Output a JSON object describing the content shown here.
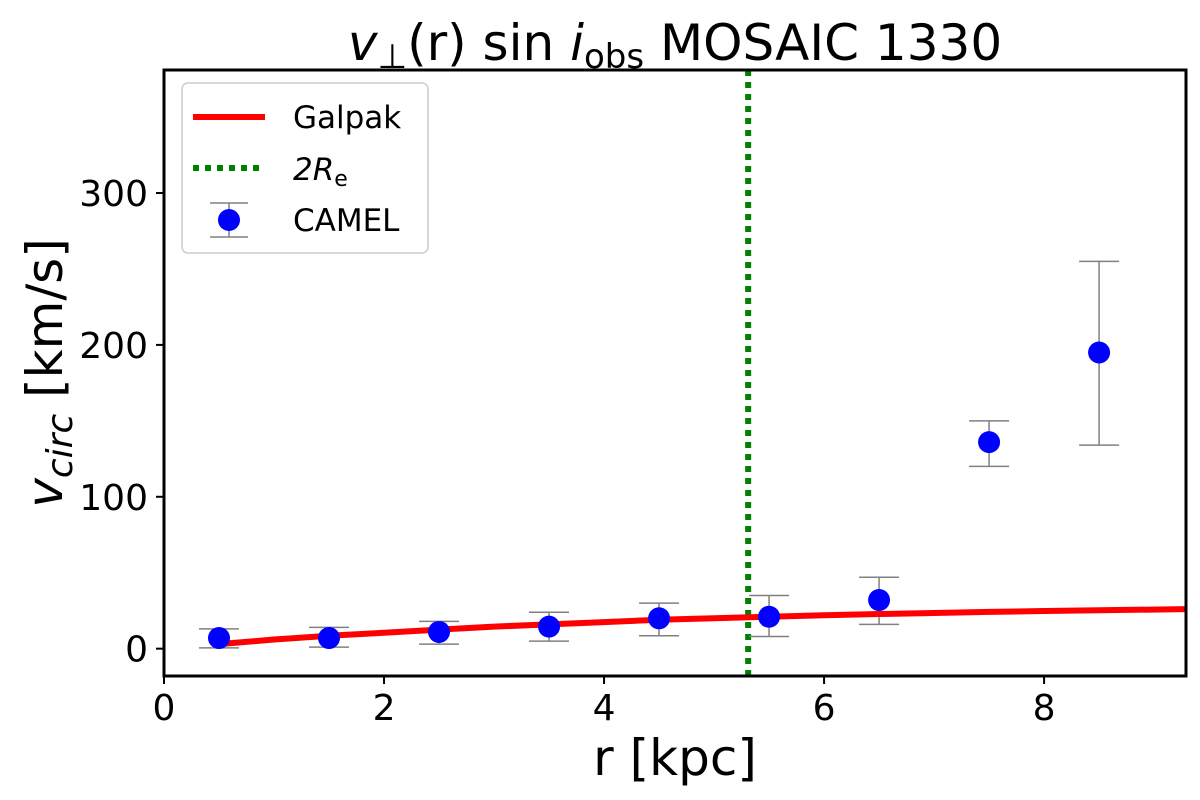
{
  "chart_data": {
    "type": "scatter",
    "title": {
      "main": "v",
      "sub1": "⊥",
      "mid": "(r) sin ",
      "i": "i",
      "sub2": "obs",
      "rest": " MOSAIC 1330"
    },
    "xlabel": "r [kpc]",
    "ylabel": {
      "main": "v",
      "sub": "circ",
      "rest": " [km/s]"
    },
    "xlim": [
      0,
      9.29
    ],
    "ylim": [
      -18,
      381
    ],
    "xticks": [
      0,
      2,
      4,
      6,
      8
    ],
    "yticks": [
      0,
      100,
      200,
      300
    ],
    "grid": false,
    "legend_position": "top-left",
    "legend": [
      {
        "label": "Galpak",
        "style": "line"
      },
      {
        "label_main": "2R",
        "label_sub": "e",
        "style": "dotted"
      },
      {
        "label": "CAMEL",
        "style": "marker-errorbar"
      }
    ],
    "series": [
      {
        "name": "Galpak",
        "type": "line",
        "color": "#ff0000",
        "x": [
          0.5,
          1.0,
          1.5,
          2.0,
          2.5,
          3.0,
          3.5,
          4.0,
          4.5,
          5.0,
          5.5,
          6.0,
          6.5,
          7.0,
          7.5,
          8.0,
          8.5,
          9.29
        ],
        "y": [
          3,
          6,
          8.5,
          10.5,
          12.5,
          14.5,
          16,
          17.5,
          19,
          20,
          21,
          22,
          22.8,
          23.5,
          24.2,
          24.8,
          25.3,
          26
        ]
      },
      {
        "name": "CAMEL",
        "type": "scatter",
        "color": "#0000ff",
        "errorbar_color": "#808080",
        "x": [
          0.5,
          1.5,
          2.5,
          3.5,
          4.5,
          5.5,
          6.5,
          7.5,
          8.5
        ],
        "y": [
          7,
          7,
          11,
          14.5,
          20,
          21,
          32,
          136,
          195
        ],
        "y_err_low": [
          0.5,
          1,
          3,
          5,
          8.5,
          8,
          16,
          120,
          134
        ],
        "y_err_high": [
          13,
          14,
          18,
          24,
          30,
          35,
          47,
          150,
          255
        ]
      },
      {
        "name": "2R_e",
        "type": "vline",
        "color": "#008000",
        "x": 5.31
      }
    ]
  }
}
